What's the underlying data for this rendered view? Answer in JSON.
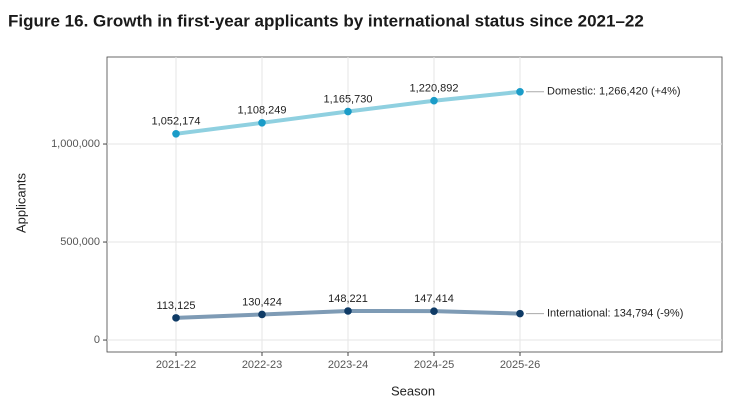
{
  "chart_data": {
    "type": "line",
    "title": "Figure 16. Growth in first-year applicants by international status since 2021–22",
    "x_label": "Season",
    "y_label": "Applicants",
    "categories": [
      "2021-22",
      "2022-23",
      "2023-24",
      "2024-25",
      "2025-26"
    ],
    "series": [
      {
        "name": "Domestic",
        "color": "#8fd0e0",
        "point_color": "#1b9cc8",
        "values": [
          1052174,
          1108249,
          1165730,
          1220892,
          1266420
        ],
        "value_labels": [
          "1,052,174",
          "1,108,249",
          "1,165,730",
          "1,220,892",
          null
        ],
        "annotation": "Domestic: 1,266,420 (+4%)"
      },
      {
        "name": "International",
        "color": "#7e9bb5",
        "point_color": "#0f3b66",
        "values": [
          113125,
          130424,
          148221,
          147414,
          134794
        ],
        "value_labels": [
          "113,125",
          "130,424",
          "148,221",
          "147,414",
          null
        ],
        "annotation": "International: 134,794 (-9%)"
      }
    ],
    "ylim": [
      -61000,
      1444000
    ],
    "yticks": [
      0,
      {
        "value": 500000,
        "label": "500,000"
      },
      {
        "value": 1000000,
        "label": "1,000,000"
      }
    ],
    "grid": true
  }
}
